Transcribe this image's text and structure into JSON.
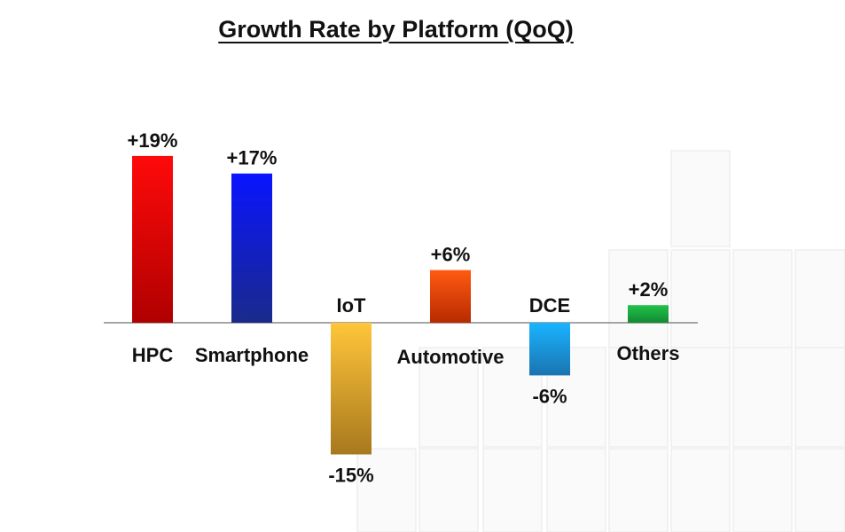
{
  "chart_data": {
    "type": "bar",
    "title": "Growth Rate by Platform (QoQ)",
    "categories": [
      "HPC",
      "Smartphone",
      "IoT",
      "Automotive",
      "DCE",
      "Others"
    ],
    "values": [
      19,
      17,
      -15,
      6,
      -6,
      2
    ],
    "value_labels": [
      "+19%",
      "+17%",
      "-15%",
      "+6%",
      "-6%",
      "+2%"
    ],
    "unit": "%",
    "ylim": [
      -15,
      19
    ],
    "colors": [
      [
        "#ff0a0a",
        "#b00000"
      ],
      [
        "#0a14ff",
        "#1a2a8a"
      ],
      [
        "#ffc63a",
        "#a8781e"
      ],
      [
        "#ff5a12",
        "#b82a00"
      ],
      [
        "#19b4ff",
        "#1a74b0"
      ],
      [
        "#22c24a",
        "#128a33"
      ]
    ],
    "xlabel": "",
    "ylabel": "",
    "grid": false,
    "legend": "none"
  }
}
